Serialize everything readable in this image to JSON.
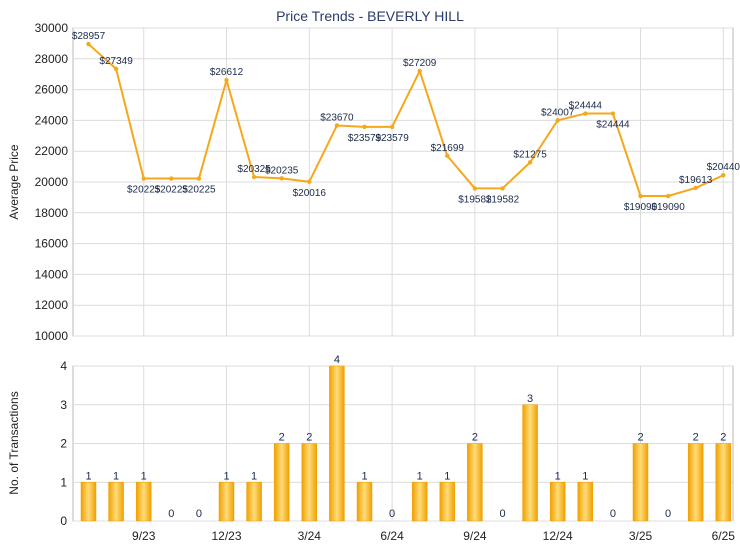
{
  "chart_data": [
    {
      "type": "line",
      "title": "Price Trends - BEVERLY HILL",
      "ylabel": "Average Price",
      "ylim": [
        10000,
        30000
      ],
      "yticks": [
        10000,
        12000,
        14000,
        16000,
        18000,
        20000,
        22000,
        24000,
        26000,
        28000,
        30000
      ],
      "color": "#f5a81c",
      "grid": true,
      "series": [
        {
          "values": [
            28957,
            27349,
            20225,
            20225,
            20225,
            26612,
            20325,
            20235,
            20016,
            23670,
            23579,
            23579,
            27209,
            21699,
            19582,
            19582,
            21275,
            24007,
            24444,
            24444,
            19090,
            19090,
            19613,
            20440
          ],
          "labels": [
            "$28957",
            "$27349",
            "$20225",
            "$20225",
            "$20225",
            "$26612",
            "$20325",
            "$20235",
            "$20016",
            "$23670",
            "$23579",
            "$23579",
            "$27209",
            "$21699",
            "$19582",
            "$19582",
            "$21275",
            "$24007",
            "$24444",
            "$24444",
            "$19090",
            "$19090",
            "$19613",
            "$20440"
          ]
        }
      ]
    },
    {
      "type": "bar",
      "ylabel": "No. of Transactions",
      "ylim": [
        0,
        4
      ],
      "yticks": [
        0,
        1,
        2,
        3,
        4
      ],
      "xticks": [
        "9/23",
        "12/23",
        "3/24",
        "6/24",
        "9/24",
        "12/24",
        "3/25",
        "6/25"
      ],
      "grid": true,
      "colors": {
        "bar_edge": "#f0a000",
        "bar_center": "#ffdc7a"
      },
      "values": [
        1,
        1,
        1,
        0,
        0,
        1,
        1,
        2,
        2,
        4,
        1,
        0,
        1,
        1,
        2,
        0,
        3,
        1,
        1,
        0,
        2,
        0,
        2,
        2
      ]
    }
  ]
}
